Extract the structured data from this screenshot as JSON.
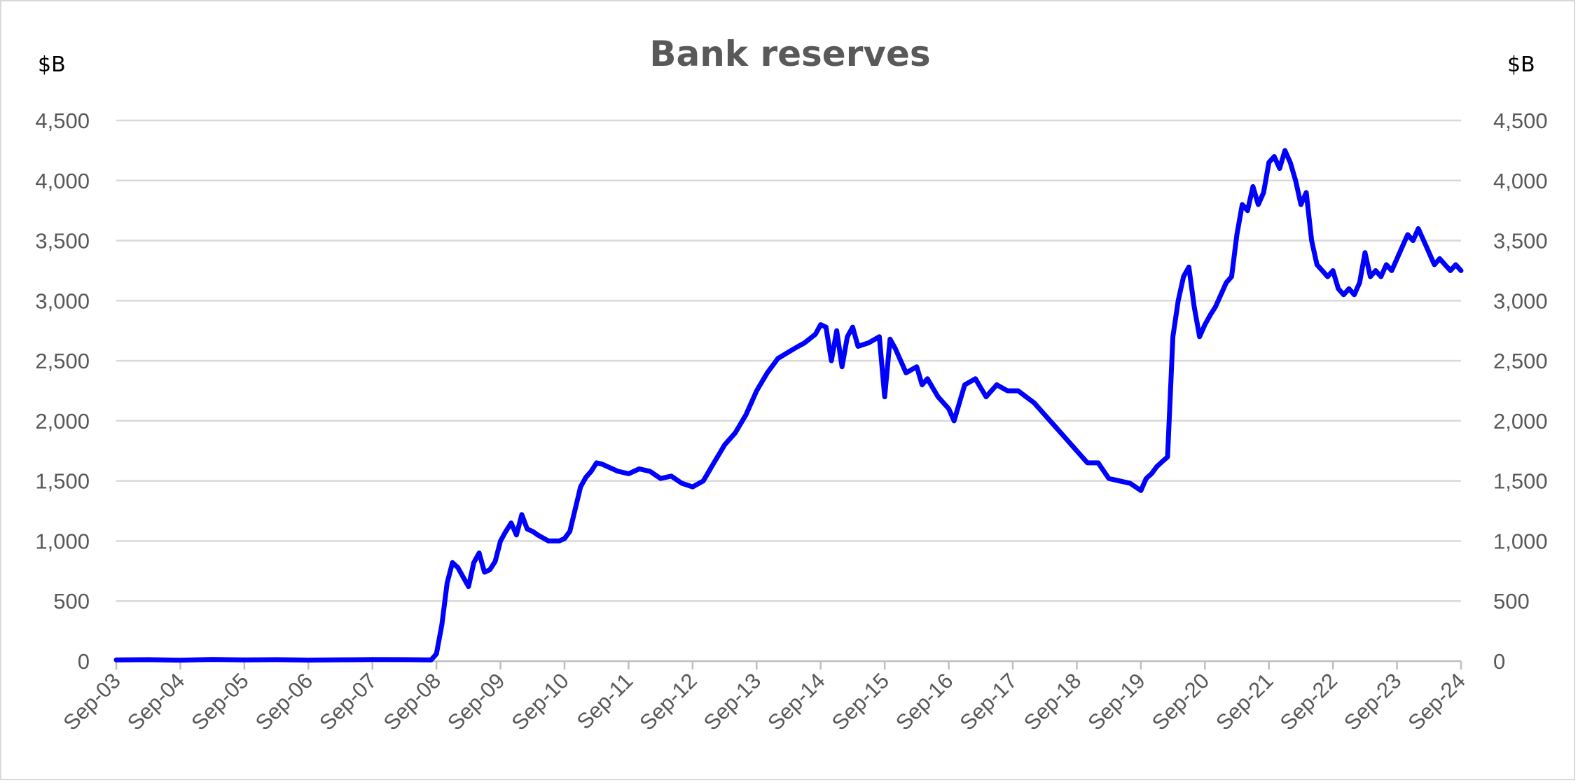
{
  "chart_data": {
    "type": "line",
    "title": "Bank reserves",
    "left_unit": "$B",
    "right_unit": "$B",
    "ylim": [
      0,
      4500
    ],
    "y_ticks": [
      0,
      500,
      1000,
      1500,
      2000,
      2500,
      3000,
      3500,
      4000,
      4500
    ],
    "y_tick_labels": [
      "0",
      "500",
      "1,000",
      "1,500",
      "2,000",
      "2,500",
      "3,000",
      "3,500",
      "4,000",
      "4,500"
    ],
    "x_tick_labels": [
      "Sep-03",
      "Sep-04",
      "Sep-05",
      "Sep-06",
      "Sep-07",
      "Sep-08",
      "Sep-09",
      "Sep-10",
      "Sep-11",
      "Sep-12",
      "Sep-13",
      "Sep-14",
      "Sep-15",
      "Sep-16",
      "Sep-17",
      "Sep-18",
      "Sep-19",
      "Sep-20",
      "Sep-21",
      "Sep-22",
      "Sep-23",
      "Sep-24"
    ],
    "xlim": [
      "Sep-03",
      "Sep-24"
    ],
    "grid": "horizontal",
    "legend": "none",
    "series": [
      {
        "color": "#0000ff",
        "x": [
          "Sep-03",
          "Mar-04",
          "Sep-04",
          "Mar-05",
          "Sep-05",
          "Mar-06",
          "Sep-06",
          "Mar-07",
          "Sep-07",
          "Mar-08",
          "Aug-08",
          "Sep-08",
          "Oct-08",
          "Nov-08",
          "Dec-08",
          "Jan-09",
          "Mar-09",
          "Apr-09",
          "May-09",
          "Jun-09",
          "Jul-09",
          "Aug-09",
          "Sep-09",
          "Oct-09",
          "Nov-09",
          "Dec-09",
          "Jan-10",
          "Feb-10",
          "Mar-10",
          "Apr-10",
          "Jun-10",
          "Aug-10",
          "Sep-10",
          "Oct-10",
          "Dec-10",
          "Jan-11",
          "Feb-11",
          "Mar-11",
          "Apr-11",
          "May-11",
          "Jul-11",
          "Sep-11",
          "Nov-11",
          "Jan-12",
          "Mar-12",
          "May-12",
          "Jul-12",
          "Sep-12",
          "Nov-12",
          "Jan-13",
          "Mar-13",
          "May-13",
          "Jul-13",
          "Sep-13",
          "Nov-13",
          "Jan-14",
          "Apr-14",
          "Jun-14",
          "Aug-14",
          "Sep-14",
          "Oct-14",
          "Nov-14",
          "Dec-14",
          "Jan-15",
          "Feb-15",
          "Mar-15",
          "Apr-15",
          "Jun-15",
          "Aug-15",
          "Sep-15",
          "Oct-15",
          "Nov-15",
          "Dec-15",
          "Jan-16",
          "Mar-16",
          "Apr-16",
          "May-16",
          "Jul-16",
          "Sep-16",
          "Oct-16",
          "Dec-16",
          "Feb-17",
          "Apr-17",
          "Jun-17",
          "Aug-17",
          "Oct-17",
          "Jan-18",
          "Mar-18",
          "May-18",
          "Jul-18",
          "Sep-18",
          "Nov-18",
          "Jan-19",
          "Mar-19",
          "May-19",
          "Jul-19",
          "Sep-19",
          "Oct-19",
          "Nov-19",
          "Dec-19",
          "Jan-20",
          "Feb-20",
          "Mar-20",
          "Apr-20",
          "May-20",
          "Jun-20",
          "Jul-20",
          "Aug-20",
          "Sep-20",
          "Oct-20",
          "Nov-20",
          "Dec-20",
          "Jan-21",
          "Feb-21",
          "Mar-21",
          "Apr-21",
          "May-21",
          "Jun-21",
          "Jul-21",
          "Aug-21",
          "Sep-21",
          "Oct-21",
          "Nov-21",
          "Dec-21",
          "Jan-22",
          "Feb-22",
          "Mar-22",
          "Apr-22",
          "May-22",
          "Jun-22",
          "Jul-22",
          "Aug-22",
          "Sep-22",
          "Oct-22",
          "Nov-22",
          "Dec-22",
          "Jan-23",
          "Feb-23",
          "Mar-23",
          "Apr-23",
          "May-23",
          "Jun-23",
          "Jul-23",
          "Aug-23",
          "Sep-23",
          "Oct-23",
          "Nov-23",
          "Dec-23",
          "Jan-24",
          "Feb-24",
          "Mar-24",
          "Apr-24",
          "May-24",
          "Jun-24",
          "Jul-24",
          "Aug-24",
          "Sep-24"
        ],
        "values": [
          10,
          12,
          8,
          14,
          10,
          12,
          9,
          11,
          13,
          12,
          10,
          60,
          300,
          650,
          820,
          780,
          620,
          820,
          900,
          740,
          760,
          830,
          1000,
          1080,
          1150,
          1050,
          1220,
          1100,
          1080,
          1050,
          1000,
          1000,
          1020,
          1080,
          1450,
          1530,
          1580,
          1650,
          1640,
          1620,
          1580,
          1560,
          1600,
          1580,
          1520,
          1540,
          1480,
          1450,
          1500,
          1650,
          1800,
          1900,
          2050,
          2250,
          2400,
          2520,
          2600,
          2650,
          2720,
          2800,
          2780,
          2500,
          2750,
          2450,
          2700,
          2780,
          2620,
          2650,
          2700,
          2200,
          2680,
          2600,
          2500,
          2400,
          2450,
          2300,
          2350,
          2200,
          2100,
          2000,
          2300,
          2350,
          2200,
          2300,
          2250,
          2250,
          2150,
          2050,
          1950,
          1850,
          1750,
          1650,
          1650,
          1520,
          1500,
          1480,
          1420,
          1520,
          1560,
          1620,
          1660,
          1700,
          2700,
          3000,
          3200,
          3280,
          2950,
          2700,
          2800,
          2880,
          2950,
          3050,
          3150,
          3200,
          3550,
          3800,
          3750,
          3950,
          3800,
          3900,
          4150,
          4200,
          4100,
          4250,
          4150,
          4000,
          3800,
          3900,
          3500,
          3300,
          3250,
          3200,
          3250,
          3100,
          3050,
          3100,
          3050,
          3150,
          3400,
          3200,
          3250,
          3200,
          3300,
          3250,
          3350,
          3450,
          3550,
          3500,
          3600,
          3500,
          3400,
          3300,
          3350,
          3300,
          3250,
          3300,
          3250
        ]
      }
    ]
  }
}
